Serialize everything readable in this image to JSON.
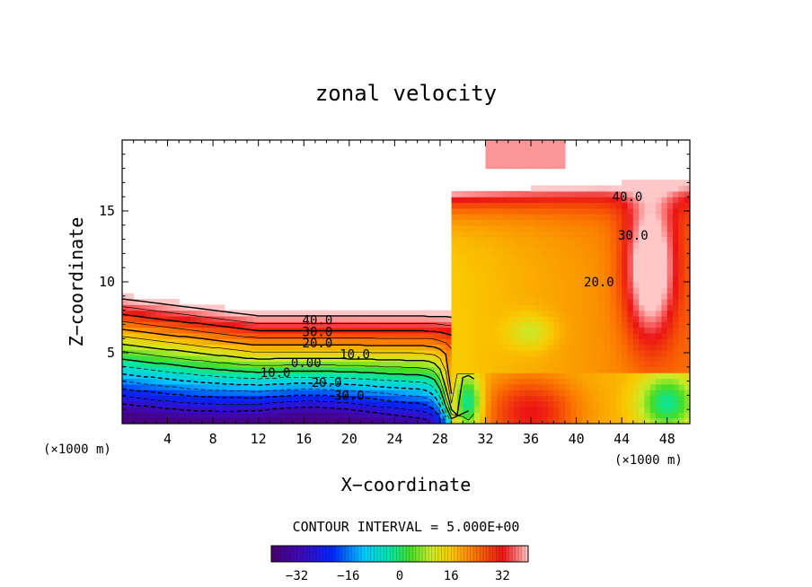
{
  "chart_data": {
    "type": "heatmap",
    "title": "zonal velocity",
    "xlabel": "X−coordinate",
    "ylabel": "Z−coordinate",
    "x_unit": "(×1000 m)",
    "y_unit": "(×1000 m)",
    "xlim": [
      0,
      50
    ],
    "ylim": [
      0,
      20
    ],
    "x_ticks": [
      4,
      8,
      12,
      16,
      20,
      24,
      28,
      32,
      36,
      40,
      44,
      48
    ],
    "y_ticks": [
      5,
      10,
      15
    ],
    "contour_interval_label": "CONTOUR INTERVAL = 5.000E+00",
    "contour_labels": [
      {
        "text": "40.0",
        "x": 17.2,
        "z": 7.3
      },
      {
        "text": "30.0",
        "x": 17.2,
        "z": 6.5
      },
      {
        "text": "20.0",
        "x": 17.2,
        "z": 5.7
      },
      {
        "text": "10.0",
        "x": 20.5,
        "z": 4.9
      },
      {
        "text": "0.00",
        "x": 16.2,
        "z": 4.3
      },
      {
        "text": "10.0",
        "x": 13.5,
        "z": 3.6
      },
      {
        "text": "20.0",
        "x": 18.0,
        "z": 2.9
      },
      {
        "text": "30.0",
        "x": 20.0,
        "z": 2.0
      },
      {
        "text": "40.0",
        "x": 44.5,
        "z": 16.0
      },
      {
        "text": "30.0",
        "x": 45.0,
        "z": 13.3
      },
      {
        "text": "20.0",
        "x": 42.0,
        "z": 10.0
      }
    ],
    "colorbar": {
      "range": [
        -40,
        40
      ],
      "ticks": [
        -32,
        -16,
        0,
        16,
        32
      ],
      "tick_labels": [
        "−32",
        "−16",
        "0",
        "16",
        "32"
      ]
    },
    "legend": "bottom-center"
  }
}
